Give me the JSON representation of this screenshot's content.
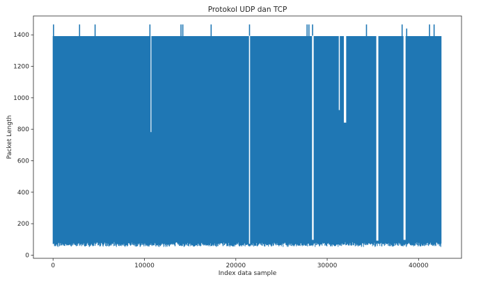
{
  "chart_data": {
    "type": "line",
    "title": "Protokol UDP dan TCP",
    "xlabel": "Index data sample",
    "ylabel": "Packet Length",
    "xlim": [
      -2150,
      44700
    ],
    "ylim": [
      -20,
      1520
    ],
    "x_ticks": [
      0,
      10000,
      20000,
      30000,
      40000
    ],
    "y_ticks": [
      0,
      200,
      400,
      600,
      800,
      1000,
      1200,
      1400
    ],
    "grid": false,
    "legend": "none",
    "color": "#1f77b4",
    "series": [
      {
        "x_range": [
          0,
          42500
        ],
        "typical_min": 55,
        "typical_max": 1392,
        "peak_max": 1466,
        "spikes": [
          {
            "x": 50,
            "y": 1466
          },
          {
            "x": 2900,
            "y": 1466
          },
          {
            "x": 4600,
            "y": 1466
          },
          {
            "x": 10600,
            "y": 1466
          },
          {
            "x": 14000,
            "y": 1466
          },
          {
            "x": 14200,
            "y": 1466
          },
          {
            "x": 17300,
            "y": 1466
          },
          {
            "x": 21500,
            "y": 1466
          },
          {
            "x": 27800,
            "y": 1466
          },
          {
            "x": 28000,
            "y": 1466
          },
          {
            "x": 28400,
            "y": 1466
          },
          {
            "x": 34300,
            "y": 1466
          },
          {
            "x": 38200,
            "y": 1466
          },
          {
            "x": 38700,
            "y": 1440
          },
          {
            "x": 41200,
            "y": 1466
          },
          {
            "x": 41700,
            "y": 1466
          }
        ],
        "gaps": [
          {
            "x0": 10650,
            "x1": 10760,
            "y_low": 780
          },
          {
            "x0": 21420,
            "x1": 21560,
            "y_low": 70
          },
          {
            "x0": 28320,
            "x1": 28520,
            "y_low": 95
          },
          {
            "x0": 31250,
            "x1": 31380,
            "y_low": 920
          },
          {
            "x0": 31800,
            "x1": 32080,
            "y_low": 840
          },
          {
            "x0": 35350,
            "x1": 35600,
            "y_low": 90
          },
          {
            "x0": 38330,
            "x1": 38580,
            "y_low": 95
          }
        ]
      }
    ]
  }
}
